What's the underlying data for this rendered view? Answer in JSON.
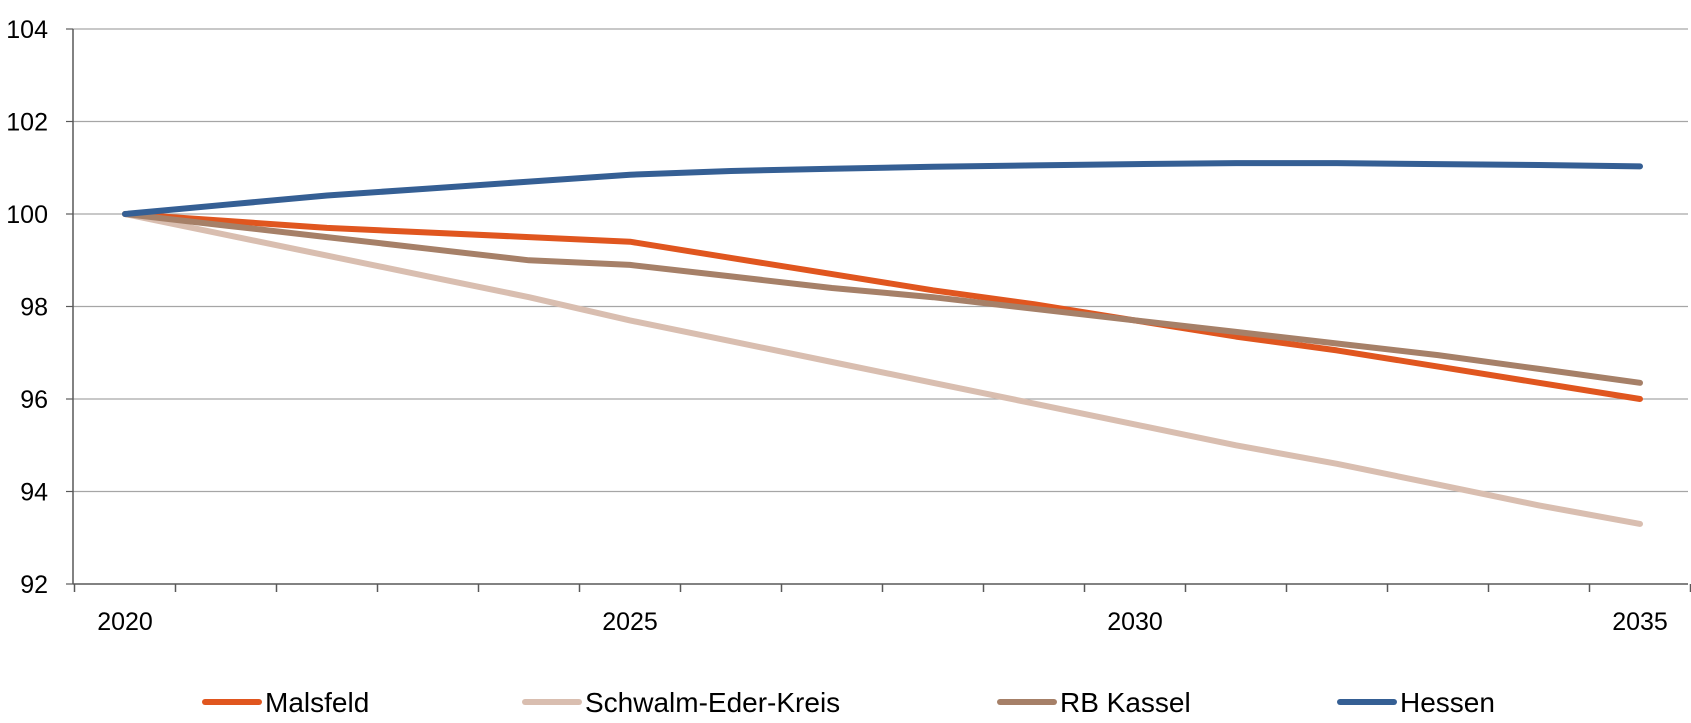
{
  "chart_data": {
    "type": "line",
    "title": "",
    "xlabel": "",
    "ylabel": "",
    "x_ticks": [
      "2020",
      "2025",
      "2030",
      "2035"
    ],
    "x_range": [
      2020,
      2035
    ],
    "ylim": [
      92,
      104
    ],
    "y_ticks": [
      "92",
      "94",
      "96",
      "98",
      "100",
      "102",
      "104"
    ],
    "grid": "horizontal",
    "legend_position": "bottom",
    "series": [
      {
        "name": "Malsfeld",
        "color": "#e0561f",
        "x": [
          2020,
          2021,
          2022,
          2023,
          2024,
          2025,
          2026,
          2027,
          2028,
          2029,
          2030,
          2031,
          2032,
          2033,
          2034,
          2035
        ],
        "values": [
          100.0,
          99.85,
          99.7,
          99.6,
          99.5,
          99.4,
          99.05,
          98.7,
          98.35,
          98.05,
          97.7,
          97.35,
          97.05,
          96.7,
          96.35,
          96.0
        ]
      },
      {
        "name": "Schwalm-Eder-Kreis",
        "color": "#d9beb0",
        "x": [
          2020,
          2021,
          2022,
          2023,
          2024,
          2025,
          2026,
          2027,
          2028,
          2029,
          2030,
          2031,
          2032,
          2033,
          2034,
          2035
        ],
        "values": [
          100.0,
          99.55,
          99.1,
          98.65,
          98.2,
          97.7,
          97.25,
          96.8,
          96.35,
          95.9,
          95.45,
          95.0,
          94.6,
          94.15,
          93.7,
          93.3
        ]
      },
      {
        "name": "RB Kassel",
        "color": "#a68068",
        "x": [
          2020,
          2021,
          2022,
          2023,
          2024,
          2025,
          2026,
          2027,
          2028,
          2029,
          2030,
          2031,
          2032,
          2033,
          2034,
          2035
        ],
        "values": [
          100.0,
          99.75,
          99.5,
          99.25,
          99.0,
          98.9,
          98.65,
          98.4,
          98.2,
          97.95,
          97.7,
          97.45,
          97.2,
          96.95,
          96.65,
          96.35
        ]
      },
      {
        "name": "Hessen",
        "color": "#355f94",
        "x": [
          2020,
          2021,
          2022,
          2023,
          2024,
          2025,
          2026,
          2027,
          2028,
          2029,
          2030,
          2031,
          2032,
          2033,
          2034,
          2035
        ],
        "values": [
          100.0,
          100.2,
          100.4,
          100.55,
          100.7,
          100.85,
          100.93,
          100.98,
          101.02,
          101.05,
          101.08,
          101.1,
          101.1,
          101.08,
          101.06,
          101.03
        ]
      }
    ]
  }
}
